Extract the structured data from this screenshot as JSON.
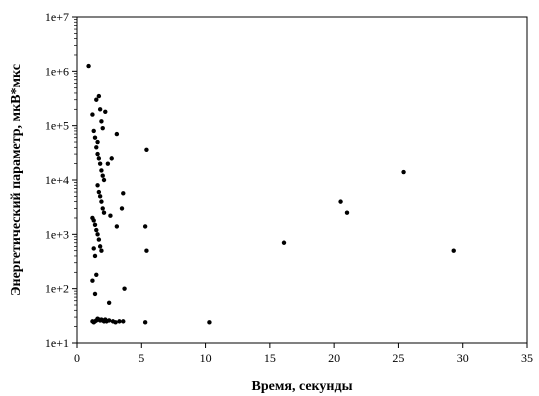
{
  "chart_data": {
    "type": "scatter",
    "xlabel": "Время, секунды",
    "ylabel": "Энергетический параметр, мкВ*мкс",
    "xlim": [
      0,
      35
    ],
    "ylim": [
      10,
      10000000
    ],
    "yscale": "log",
    "grid": false,
    "legend": "none",
    "marker_color": "#000000",
    "x_ticks": [
      0,
      5,
      10,
      15,
      20,
      25,
      30,
      35
    ],
    "x_tick_labels": [
      "0",
      "5",
      "10",
      "15",
      "20",
      "25",
      "30",
      "35"
    ],
    "y_ticks": [
      10,
      100,
      1000,
      10000,
      100000,
      1000000,
      10000000
    ],
    "y_tick_labels": [
      "1e+1",
      "1e+2",
      "1e+3",
      "1e+4",
      "1e+5",
      "1e+6",
      "1e+7"
    ],
    "series": [
      {
        "points": [
          [
            0.9,
            1250000
          ],
          [
            1.2,
            160000
          ],
          [
            1.3,
            80000
          ],
          [
            1.4,
            60000
          ],
          [
            1.5,
            300000
          ],
          [
            1.6,
            50000
          ],
          [
            1.7,
            350000
          ],
          [
            1.8,
            200000
          ],
          [
            1.9,
            120000
          ],
          [
            2.0,
            90000
          ],
          [
            2.2,
            180000
          ],
          [
            1.5,
            40000
          ],
          [
            1.6,
            30000
          ],
          [
            1.7,
            25000
          ],
          [
            1.8,
            20000
          ],
          [
            1.9,
            15000
          ],
          [
            2.0,
            12000
          ],
          [
            2.1,
            10000
          ],
          [
            1.6,
            8000
          ],
          [
            1.7,
            6000
          ],
          [
            1.8,
            5000
          ],
          [
            1.9,
            4000
          ],
          [
            2.0,
            3000
          ],
          [
            2.1,
            2500
          ],
          [
            1.2,
            2000
          ],
          [
            1.3,
            1800
          ],
          [
            1.4,
            1500
          ],
          [
            1.5,
            1200
          ],
          [
            1.6,
            1000
          ],
          [
            1.7,
            800
          ],
          [
            1.8,
            600
          ],
          [
            1.9,
            500
          ],
          [
            1.3,
            550
          ],
          [
            1.4,
            400
          ],
          [
            1.5,
            180
          ],
          [
            1.2,
            140
          ],
          [
            1.4,
            80
          ],
          [
            2.0,
            26
          ],
          [
            2.1,
            25
          ],
          [
            2.2,
            27
          ],
          [
            1.6,
            28
          ],
          [
            1.7,
            27
          ],
          [
            1.5,
            26
          ],
          [
            1.4,
            25
          ],
          [
            1.3,
            24
          ],
          [
            1.2,
            25
          ],
          [
            1.8,
            26
          ],
          [
            1.9,
            27
          ],
          [
            2.3,
            25
          ],
          [
            2.5,
            26
          ],
          [
            2.8,
            25
          ],
          [
            3.0,
            24
          ],
          [
            3.3,
            25
          ],
          [
            3.6,
            25
          ],
          [
            5.3,
            24
          ],
          [
            10.3,
            24
          ],
          [
            2.5,
            55
          ],
          [
            3.7,
            100
          ],
          [
            3.1,
            70000
          ],
          [
            3.6,
            5700
          ],
          [
            3.5,
            3000
          ],
          [
            2.7,
            25000
          ],
          [
            2.4,
            20000
          ],
          [
            2.6,
            2200
          ],
          [
            3.1,
            1400
          ],
          [
            5.4,
            36000
          ],
          [
            5.3,
            1400
          ],
          [
            5.4,
            500
          ],
          [
            16.1,
            700
          ],
          [
            20.5,
            4000
          ],
          [
            21.0,
            2500
          ],
          [
            25.4,
            14000
          ],
          [
            29.3,
            500
          ]
        ]
      }
    ]
  }
}
